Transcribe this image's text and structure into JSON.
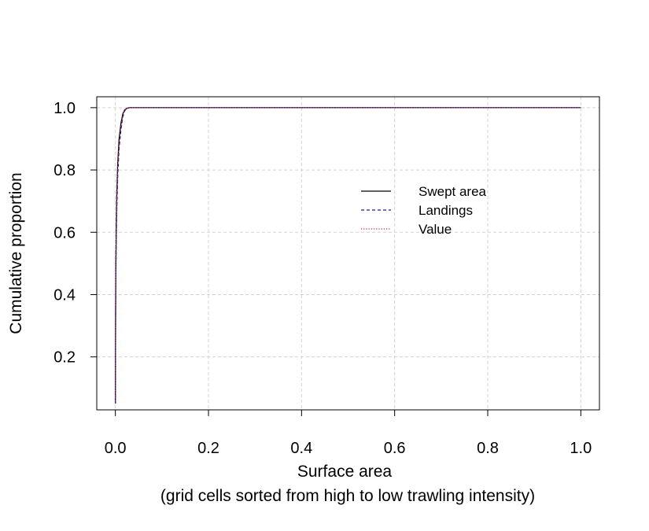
{
  "chart_data": {
    "type": "line",
    "title": "",
    "xlabel": "Surface area",
    "xlabel_line2": "(grid cells sorted from high to low trawling intensity)",
    "ylabel": "Cumulative proportion",
    "xlim": [
      -0.04,
      1.04
    ],
    "ylim": [
      0.03,
      1.035
    ],
    "x_ticks": [
      "0.0",
      "0.2",
      "0.4",
      "0.6",
      "0.8",
      "1.0"
    ],
    "y_ticks": [
      "0.2",
      "0.4",
      "0.6",
      "0.8",
      "1.0"
    ],
    "grid": true,
    "legend_position": "center-right",
    "series": [
      {
        "name": "Swept area",
        "line_style": "solid",
        "color": "#000000",
        "x": [
          0,
          0.0005,
          0.001,
          0.002,
          0.003,
          0.005,
          0.008,
          0.012,
          0.016,
          0.02,
          0.025,
          0.03,
          0.035,
          0.1,
          0.5,
          1.0
        ],
        "y": [
          0.05,
          0.35,
          0.5,
          0.63,
          0.72,
          0.82,
          0.9,
          0.95,
          0.98,
          0.993,
          0.998,
          1.0,
          1.0,
          1.0,
          1.0,
          1.0
        ]
      },
      {
        "name": "Landings",
        "line_style": "dashed",
        "color": "#1a1aa8",
        "x": [
          0,
          0.0005,
          0.001,
          0.002,
          0.003,
          0.005,
          0.008,
          0.012,
          0.016,
          0.02,
          0.025,
          0.03,
          0.035,
          0.1,
          0.5,
          1.0
        ],
        "y": [
          0.05,
          0.3,
          0.45,
          0.58,
          0.67,
          0.78,
          0.87,
          0.93,
          0.97,
          0.99,
          0.997,
          1.0,
          1.0,
          1.0,
          1.0,
          1.0
        ]
      },
      {
        "name": "Value",
        "line_style": "dotted",
        "color": "#c0303a",
        "x": [
          0,
          0.0005,
          0.001,
          0.002,
          0.003,
          0.005,
          0.008,
          0.012,
          0.016,
          0.02,
          0.025,
          0.03,
          0.035,
          0.1,
          0.5,
          1.0
        ],
        "y": [
          0.05,
          0.32,
          0.47,
          0.6,
          0.69,
          0.8,
          0.88,
          0.94,
          0.975,
          0.992,
          0.998,
          1.0,
          1.0,
          1.0,
          1.0,
          1.0
        ]
      }
    ]
  }
}
